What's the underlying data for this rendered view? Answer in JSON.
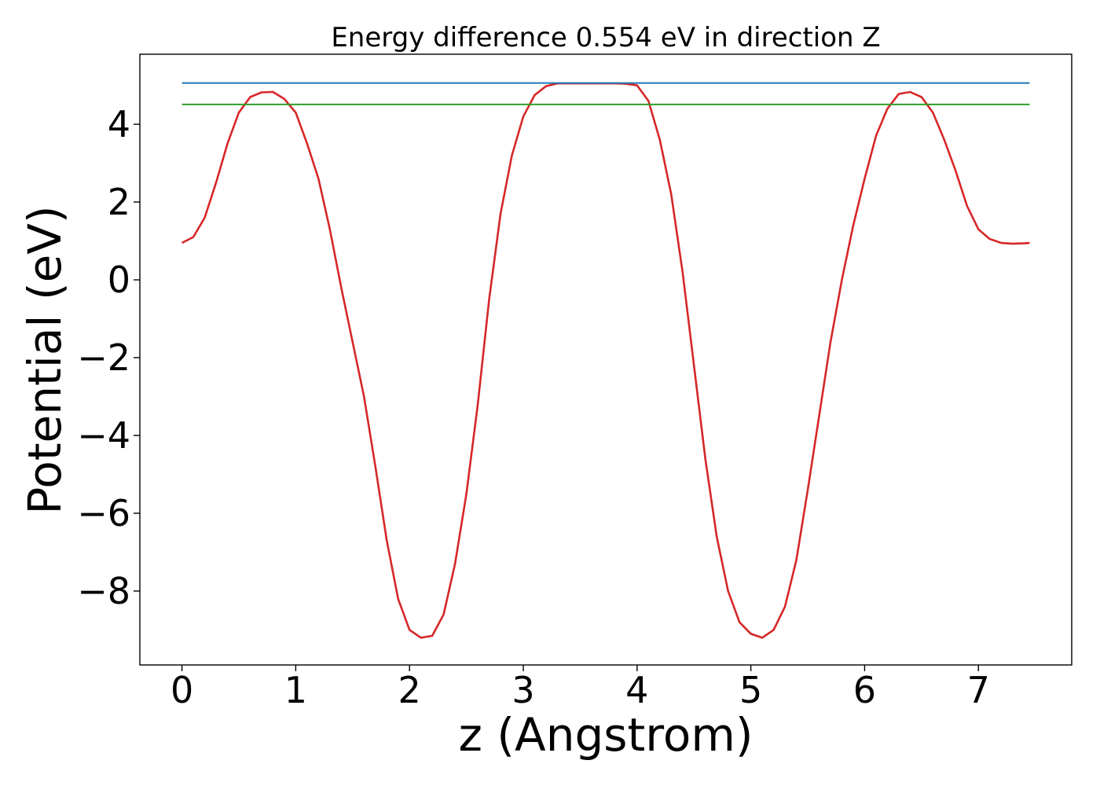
{
  "chart_data": {
    "type": "line",
    "title": "Energy difference 0.554 eV in direction Z",
    "xlabel": "z (Angstrom)",
    "ylabel": "Potential (eV)",
    "xlim": [
      -0.37,
      7.82
    ],
    "ylim": [
      -9.9,
      5.8
    ],
    "xticks": [
      0,
      1,
      2,
      3,
      4,
      5,
      6,
      7
    ],
    "xtick_labels": [
      "0",
      "1",
      "2",
      "3",
      "4",
      "5",
      "6",
      "7"
    ],
    "yticks": [
      -8,
      -6,
      -4,
      -2,
      0,
      2,
      4
    ],
    "ytick_labels": [
      "−8",
      "−6",
      "−4",
      "−2",
      "0",
      "2",
      "4"
    ],
    "grid": false,
    "legend": "none",
    "series": [
      {
        "color": "#d62728",
        "style": "solid",
        "x": [
          0.0,
          0.1,
          0.2,
          0.3,
          0.4,
          0.5,
          0.6,
          0.7,
          0.8,
          0.9,
          1.0,
          1.1,
          1.2,
          1.3,
          1.4,
          1.5,
          1.6,
          1.7,
          1.8,
          1.9,
          2.0,
          2.1,
          2.2,
          2.3,
          2.4,
          2.5,
          2.6,
          2.7,
          2.8,
          2.9,
          3.0,
          3.1,
          3.2,
          3.3,
          3.4,
          3.5,
          3.6,
          3.7,
          3.8,
          3.9,
          4.0,
          4.1,
          4.2,
          4.3,
          4.4,
          4.5,
          4.6,
          4.7,
          4.8,
          4.9,
          5.0,
          5.1,
          5.2,
          5.3,
          5.4,
          5.5,
          5.6,
          5.7,
          5.8,
          5.9,
          6.0,
          6.1,
          6.2,
          6.3,
          6.4,
          6.5,
          6.6,
          6.7,
          6.8,
          6.9,
          7.0,
          7.1,
          7.2,
          7.3,
          7.4,
          7.45
        ],
        "y": [
          0.95,
          1.1,
          1.6,
          2.5,
          3.5,
          4.3,
          4.7,
          4.82,
          4.83,
          4.65,
          4.3,
          3.5,
          2.6,
          1.3,
          -0.2,
          -1.6,
          -3.0,
          -4.8,
          -6.7,
          -8.2,
          -9.0,
          -9.2,
          -9.15,
          -8.6,
          -7.3,
          -5.5,
          -3.2,
          -0.5,
          1.7,
          3.2,
          4.2,
          4.75,
          4.98,
          5.05,
          5.05,
          5.05,
          5.05,
          5.05,
          5.05,
          5.04,
          5.0,
          4.6,
          3.6,
          2.2,
          0.2,
          -2.2,
          -4.6,
          -6.6,
          -8.0,
          -8.8,
          -9.1,
          -9.2,
          -9.0,
          -8.4,
          -7.2,
          -5.4,
          -3.5,
          -1.6,
          0.0,
          1.4,
          2.6,
          3.7,
          4.4,
          4.78,
          4.83,
          4.7,
          4.3,
          3.6,
          2.8,
          1.9,
          1.3,
          1.05,
          0.95,
          0.93,
          0.94,
          0.95
        ]
      },
      {
        "color": "#1f77b4",
        "style": "solid",
        "x": [
          0.0,
          7.45
        ],
        "y": [
          5.06,
          5.06
        ]
      },
      {
        "color": "#2ca02c",
        "style": "solid",
        "x": [
          0.0,
          7.45
        ],
        "y": [
          4.51,
          4.51
        ]
      }
    ]
  }
}
